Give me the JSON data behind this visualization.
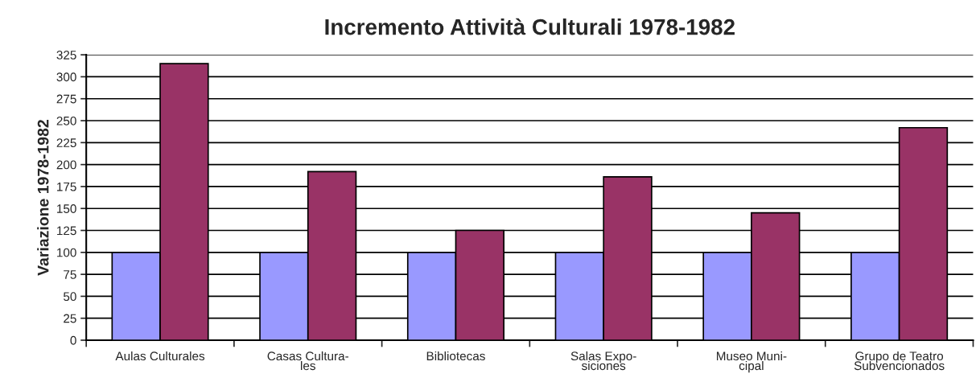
{
  "chart_data": {
    "type": "bar",
    "title": "Incremento Attività Culturali 1978-1982",
    "ylabel": "Variazione 1978-1982",
    "categories": [
      "Aulas Culturales",
      "Casas Cultura-\nles",
      "Bibliotecas",
      "Salas Expo-\nsiciones",
      "Museo Muni-\ncipal",
      "Grupo de Teatro\nSubvencionados"
    ],
    "series": [
      {
        "color": "#9999ff",
        "values": [
          100,
          100,
          100,
          100,
          100,
          100
        ]
      },
      {
        "color": "#993366",
        "values": [
          315,
          192,
          125,
          186,
          145,
          242
        ]
      }
    ],
    "ylim": [
      0,
      325
    ],
    "yticks": [
      0,
      25,
      50,
      75,
      100,
      125,
      150,
      175,
      200,
      225,
      250,
      275,
      300,
      325
    ],
    "grid": "y",
    "legend": false
  }
}
